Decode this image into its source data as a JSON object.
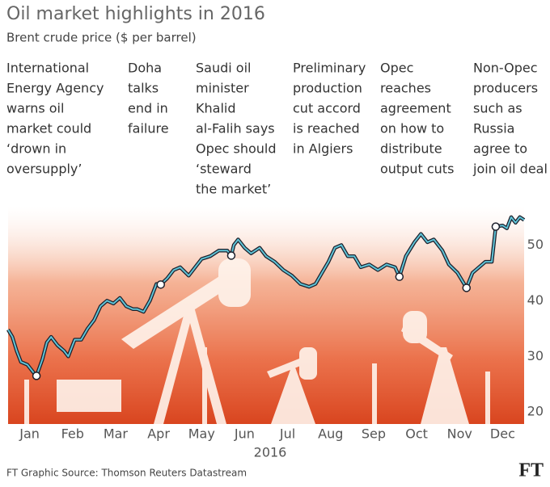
{
  "chart_data": {
    "type": "line",
    "title": "Oil market highlights in 2016",
    "subtitle": "Brent crude price ($ per barrel)",
    "xlabel": "2016",
    "source": "FT Graphic   Source: Thomson Reuters Datastream",
    "logo": "FT",
    "color": "#5fc3d6",
    "xlim": [
      0,
      12
    ],
    "xticks": [
      {
        "value": 0.5,
        "label": "Jan"
      },
      {
        "value": 1.5,
        "label": "Feb"
      },
      {
        "value": 2.5,
        "label": "Mar"
      },
      {
        "value": 3.5,
        "label": "Apr"
      },
      {
        "value": 4.5,
        "label": "May"
      },
      {
        "value": 5.5,
        "label": "Jun"
      },
      {
        "value": 6.5,
        "label": "Jul"
      },
      {
        "value": 7.5,
        "label": "Aug"
      },
      {
        "value": 8.5,
        "label": "Sep"
      },
      {
        "value": 9.5,
        "label": "Oct"
      },
      {
        "value": 10.5,
        "label": "Nov"
      },
      {
        "value": 11.5,
        "label": "Dec"
      }
    ],
    "ylim": [
      18,
      56
    ],
    "yticks": [
      20,
      30,
      40,
      50
    ],
    "x": [
      0,
      0.1,
      0.2,
      0.3,
      0.45,
      0.6,
      0.66,
      0.8,
      0.9,
      1.0,
      1.15,
      1.3,
      1.4,
      1.55,
      1.7,
      1.85,
      2.0,
      2.15,
      2.3,
      2.45,
      2.6,
      2.75,
      2.9,
      3.0,
      3.15,
      3.3,
      3.45,
      3.55,
      3.7,
      3.85,
      4.0,
      4.2,
      4.35,
      4.5,
      4.7,
      4.9,
      5.1,
      5.19,
      5.25,
      5.35,
      5.5,
      5.65,
      5.85,
      6.0,
      6.2,
      6.4,
      6.6,
      6.8,
      7.0,
      7.15,
      7.3,
      7.45,
      7.6,
      7.75,
      7.9,
      8.05,
      8.2,
      8.4,
      8.6,
      8.8,
      9.0,
      9.1,
      9.25,
      9.45,
      9.6,
      9.75,
      9.9,
      10.1,
      10.25,
      10.45,
      10.66,
      10.8,
      10.95,
      11.1,
      11.25,
      11.34,
      11.5,
      11.6,
      11.7,
      11.8,
      11.9,
      12.0
    ],
    "values": [
      34.8,
      33.5,
      31,
      29,
      28.5,
      27,
      26.5,
      29.5,
      32.5,
      33.5,
      32,
      31,
      30,
      33,
      33,
      35,
      36.5,
      39,
      40,
      39.5,
      40.5,
      39,
      38.5,
      38.5,
      38,
      40,
      43,
      42.9,
      44,
      45.5,
      46,
      44.5,
      46,
      47.5,
      48,
      49,
      49,
      48.1,
      50,
      51,
      49.5,
      48.5,
      49.5,
      48,
      47,
      45.5,
      44.5,
      43,
      42.5,
      43,
      45,
      47,
      49.5,
      50,
      48,
      48,
      46,
      46.5,
      45.5,
      46.5,
      46,
      44.3,
      48,
      50.5,
      52,
      50.5,
      51,
      49,
      46.5,
      45,
      42.3,
      45,
      46,
      47,
      47,
      53.3,
      53.5,
      53,
      55,
      54,
      55,
      54.5
    ],
    "highlights": [
      {
        "x": 0.66,
        "value": 26.5,
        "text": [
          "International",
          "Energy Agency",
          "warns oil",
          "market could",
          "‘drown in",
          "oversupply’"
        ]
      },
      {
        "x": 3.55,
        "value": 42.9,
        "text": [
          "Doha",
          "talks",
          "end in",
          "failure"
        ]
      },
      {
        "x": 5.19,
        "value": 48.1,
        "text": [
          "Saudi oil",
          "minister",
          "Khalid",
          "al-Falih says",
          "Opec should",
          "‘steward",
          " the market’"
        ]
      },
      {
        "x": 9.1,
        "value": 44.3,
        "text": [
          "Preliminary",
          "production",
          "cut accord",
          "is reached",
          "in Algiers"
        ]
      },
      {
        "x": 10.66,
        "value": 42.3,
        "text": [
          "Opec",
          "reaches",
          "agreement",
          "on how to",
          "distribute",
          "output cuts"
        ]
      },
      {
        "x": 11.34,
        "value": 53.3,
        "text": [
          "Non-Opec",
          "producers",
          "such as",
          "Russia",
          "agree to",
          "join oil deal"
        ]
      }
    ]
  }
}
